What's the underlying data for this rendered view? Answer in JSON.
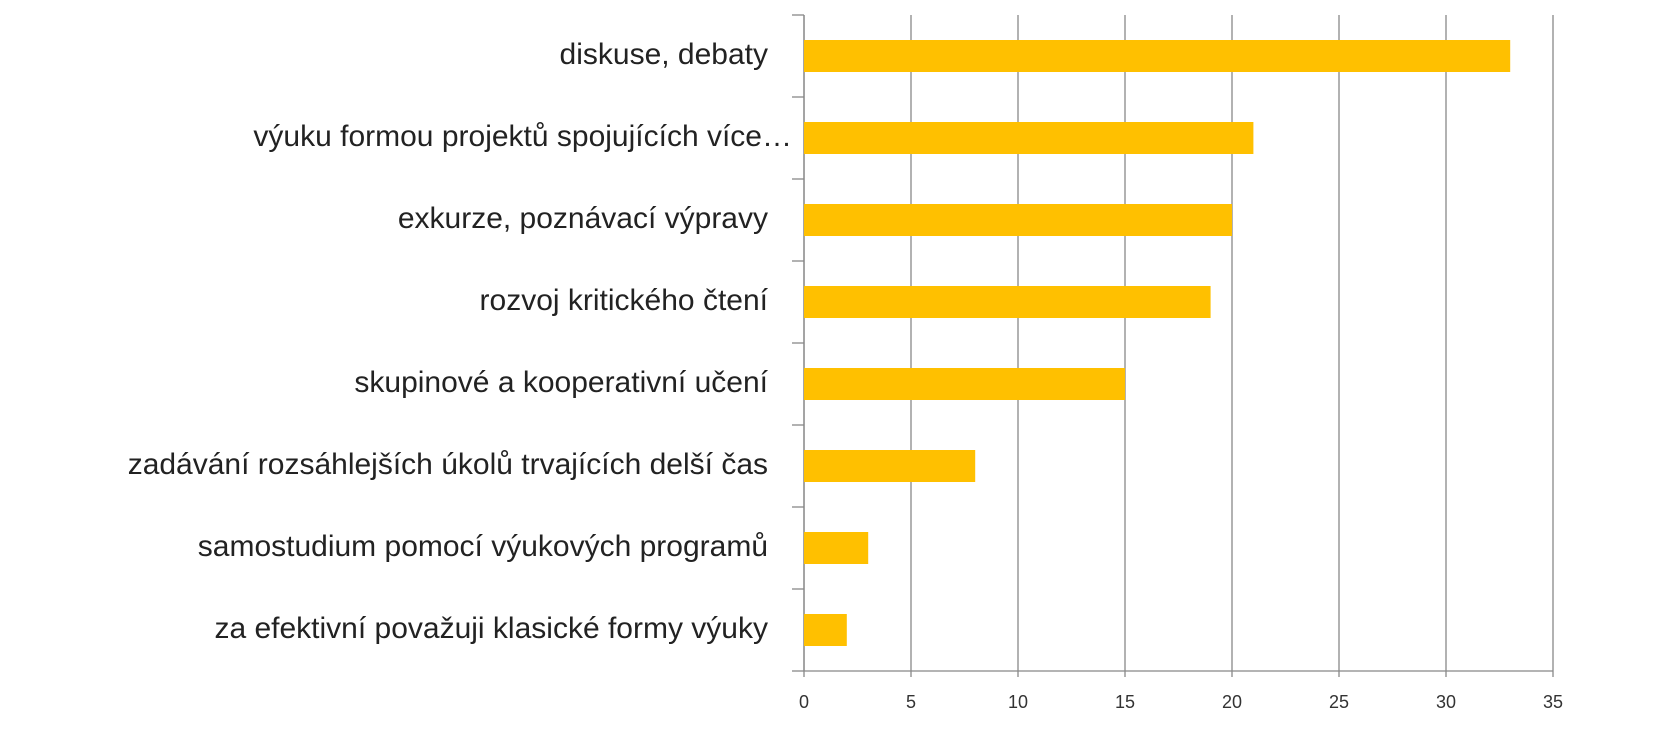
{
  "chart_data": {
    "type": "bar",
    "orientation": "horizontal",
    "categories": [
      "diskuse, debaty",
      "výuku formou projektů spojujících více…",
      "exkurze, poznávací výpravy",
      "rozvoj kritického čtení",
      "skupinové a kooperativní učení",
      "zadávání rozsáhlejších úkolů trvajících delší čas",
      "samostudium pomocí výukových programů",
      "za efektivní považuji klasické formy výuky"
    ],
    "values": [
      33,
      21,
      20,
      19,
      15,
      8,
      3,
      2
    ],
    "color": "#ffc000",
    "xlim": [
      0,
      35
    ],
    "xticks": [
      0,
      5,
      10,
      15,
      20,
      25,
      30,
      35
    ],
    "grid": true
  }
}
